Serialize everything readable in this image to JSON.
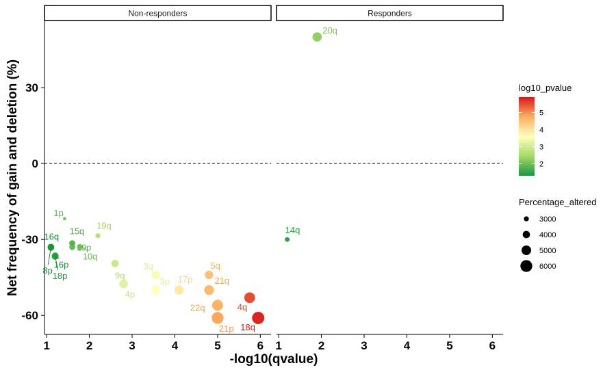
{
  "chart_data": {
    "type": "scatter",
    "xlabel": "-log10(qvalue)",
    "ylabel": "Net frequency of gain and deletion (%)",
    "xlim": [
      0.95,
      6.25
    ],
    "ylim": [
      -67.5,
      56.5
    ],
    "x_ticks": [
      1,
      2,
      3,
      4,
      5,
      6
    ],
    "y_ticks": [
      30,
      0,
      -30,
      -60
    ],
    "reference_line": 0,
    "grid": false,
    "legend_position": "right",
    "panels": [
      {
        "name": "Non-responders",
        "points": [
          {
            "label": "1p",
            "x": 1.42,
            "y": -21.8,
            "log10_pvalue": 2.0,
            "percentage_altered": 2200
          },
          {
            "label": "15q",
            "x": 1.6,
            "y": -31.5,
            "log10_pvalue": 1.8,
            "percentage_altered": 3500
          },
          {
            "label": "19q",
            "x": 2.2,
            "y": -28.5,
            "log10_pvalue": 2.7,
            "percentage_altered": 3000
          },
          {
            "label": "19p",
            "x": 1.6,
            "y": -33.0,
            "log10_pvalue": 1.9,
            "percentage_altered": 3400
          },
          {
            "label": "10q",
            "x": 1.78,
            "y": -33.0,
            "log10_pvalue": 2.1,
            "percentage_altered": 3500
          },
          {
            "label": "16q",
            "x": 1.1,
            "y": -33.0,
            "log10_pvalue": 1.3,
            "percentage_altered": 3700
          },
          {
            "label": "16p",
            "x": 1.2,
            "y": -36.5,
            "log10_pvalue": 1.4,
            "percentage_altered": 3800
          },
          {
            "label": "8p",
            "x": 1.1,
            "y": -33.2,
            "log10_pvalue": 1.35,
            "percentage_altered": 3600
          },
          {
            "label": "18p",
            "x": 1.2,
            "y": -36.7,
            "log10_pvalue": 1.45,
            "percentage_altered": 3700
          },
          {
            "label": "9q",
            "x": 2.6,
            "y": -39.5,
            "log10_pvalue": 2.9,
            "percentage_altered": 4000
          },
          {
            "label": "4p",
            "x": 2.8,
            "y": -47.5,
            "log10_pvalue": 3.2,
            "percentage_altered": 4600
          },
          {
            "label": "3q",
            "x": 3.55,
            "y": -44.0,
            "log10_pvalue": 3.5,
            "percentage_altered": 4500
          },
          {
            "label": "3p",
            "x": 3.55,
            "y": -50.0,
            "log10_pvalue": 3.6,
            "percentage_altered": 4900
          },
          {
            "label": "17p",
            "x": 4.1,
            "y": -50.0,
            "log10_pvalue": 3.9,
            "percentage_altered": 4900
          },
          {
            "label": "5q",
            "x": 4.8,
            "y": -44.0,
            "log10_pvalue": 4.5,
            "percentage_altered": 4500
          },
          {
            "label": "21q",
            "x": 4.8,
            "y": -50.0,
            "log10_pvalue": 4.6,
            "percentage_altered": 5100
          },
          {
            "label": "22q",
            "x": 5.0,
            "y": -56.0,
            "log10_pvalue": 4.7,
            "percentage_altered": 5600
          },
          {
            "label": "21p",
            "x": 5.0,
            "y": -61.0,
            "log10_pvalue": 4.8,
            "percentage_altered": 6000
          },
          {
            "label": "4q",
            "x": 5.75,
            "y": -53.0,
            "log10_pvalue": 5.5,
            "percentage_altered": 5500
          },
          {
            "label": "18q",
            "x": 5.95,
            "y": -61.0,
            "log10_pvalue": 5.8,
            "percentage_altered": 6200
          }
        ]
      },
      {
        "name": "Responders",
        "points": [
          {
            "label": "20q",
            "x": 1.9,
            "y": 50.0,
            "log10_pvalue": 2.3,
            "percentage_altered": 4900
          },
          {
            "label": "14q",
            "x": 1.2,
            "y": -30.0,
            "log10_pvalue": 1.5,
            "percentage_altered": 2900
          }
        ]
      }
    ],
    "color_legend": {
      "title": "log10_pvalue",
      "ticks": [
        2,
        3,
        4,
        5
      ],
      "range": [
        1.3,
        5.9
      ],
      "colors": [
        "#1a9641",
        "#a6d96a",
        "#ffffbf",
        "#fdae61",
        "#d7191c"
      ]
    },
    "size_legend": {
      "title": "Percentage_altered",
      "values": [
        3000,
        4000,
        5000,
        6000
      ]
    }
  }
}
